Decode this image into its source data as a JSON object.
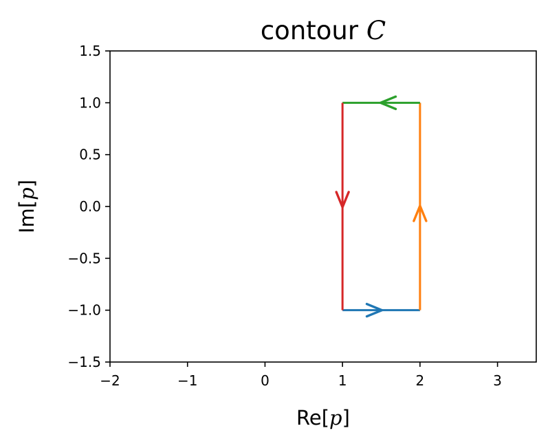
{
  "chart_data": {
    "type": "line",
    "title": "contour 𝒞",
    "xlabel": {
      "prefix": "Re[",
      "var": "p",
      "suffix": "]"
    },
    "ylabel": {
      "prefix": "Im[",
      "var": "p",
      "suffix": "]"
    },
    "xlim": [
      -2,
      3.5
    ],
    "ylim": [
      -1.5,
      1.5
    ],
    "xticks": [
      -2,
      -1,
      0,
      1,
      2,
      3
    ],
    "yticks": [
      -1.5,
      -1.0,
      -0.5,
      0.0,
      0.5,
      1.0,
      1.5
    ],
    "xtick_labels": [
      "−2",
      "−1",
      "0",
      "1",
      "2",
      "3"
    ],
    "ytick_labels": [
      "−1.5",
      "−1.0",
      "−0.5",
      "0.0",
      "0.5",
      "1.0",
      "1.5"
    ],
    "grid": false,
    "series": [
      {
        "color": "#1f77b4",
        "points": [
          [
            1,
            -1
          ],
          [
            2,
            -1
          ]
        ],
        "arrow_at": [
          1.5,
          -1
        ]
      },
      {
        "color": "#ff7f0e",
        "points": [
          [
            2,
            -1
          ],
          [
            2,
            1
          ]
        ],
        "arrow_at": [
          2,
          0
        ]
      },
      {
        "color": "#2ca02c",
        "points": [
          [
            2,
            1
          ],
          [
            1,
            1
          ]
        ],
        "arrow_at": [
          1.5,
          1
        ]
      },
      {
        "color": "#d62728",
        "points": [
          [
            1,
            1
          ],
          [
            1,
            -1
          ]
        ],
        "arrow_at": [
          1,
          0
        ]
      }
    ]
  }
}
